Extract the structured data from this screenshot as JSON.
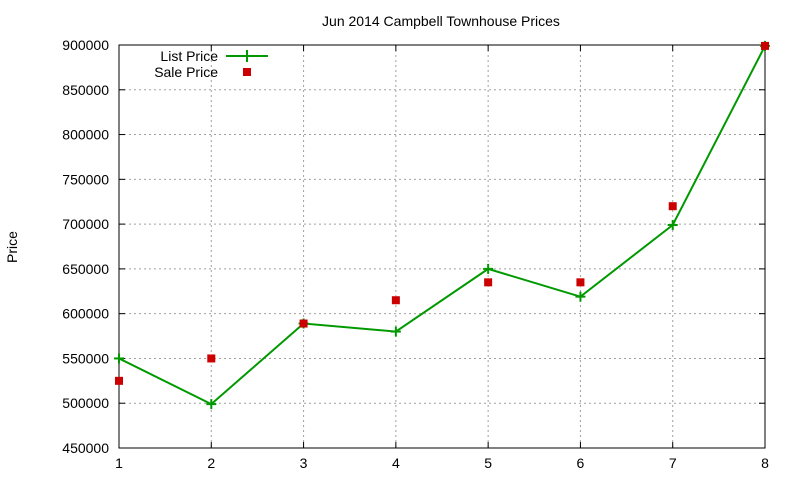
{
  "chart_data": {
    "type": "line",
    "title": "Jun 2014 Campbell Townhouse Prices",
    "xlabel": "",
    "ylabel": "Price",
    "xlim": [
      1,
      8
    ],
    "ylim": [
      450000,
      900000
    ],
    "x_ticks": [
      "1",
      "2",
      "3",
      "4",
      "5",
      "6",
      "7",
      "8"
    ],
    "y_ticks": [
      "450000",
      "500000",
      "550000",
      "600000",
      "650000",
      "700000",
      "750000",
      "800000",
      "850000",
      "900000"
    ],
    "grid": true,
    "legend_position": "top-left",
    "series": [
      {
        "name": "List Price",
        "style": "line-with-plus-markers",
        "color": "#009900",
        "x": [
          1,
          2,
          3,
          4,
          5,
          6,
          7,
          8
        ],
        "y": [
          550000,
          499000,
          589000,
          580000,
          650000,
          619000,
          699000,
          899000
        ]
      },
      {
        "name": "Sale Price",
        "style": "square-markers",
        "color": "#cc0000",
        "x": [
          1,
          2,
          3,
          4,
          5,
          6,
          7,
          8
        ],
        "y": [
          525000,
          550000,
          589000,
          615000,
          635000,
          635000,
          720000,
          899000
        ]
      }
    ]
  }
}
